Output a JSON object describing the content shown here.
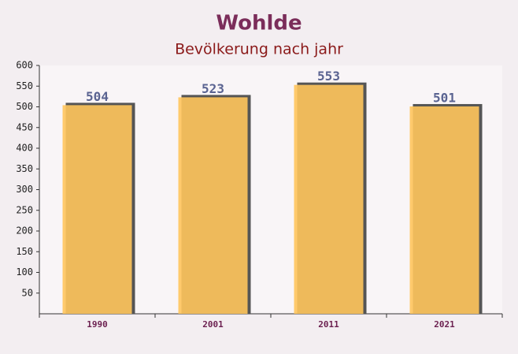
{
  "chart_data": {
    "type": "bar",
    "title": "Wohlde",
    "subtitle": "Bevölkerung nach jahr",
    "categories": [
      "1990",
      "2001",
      "2011",
      "2021"
    ],
    "values": [
      504,
      523,
      553,
      501
    ],
    "color": "#ffc55c",
    "ylim": [
      0,
      600
    ],
    "yticks": [
      50,
      100,
      150,
      200,
      250,
      300,
      350,
      400,
      450,
      500,
      550,
      600
    ]
  }
}
